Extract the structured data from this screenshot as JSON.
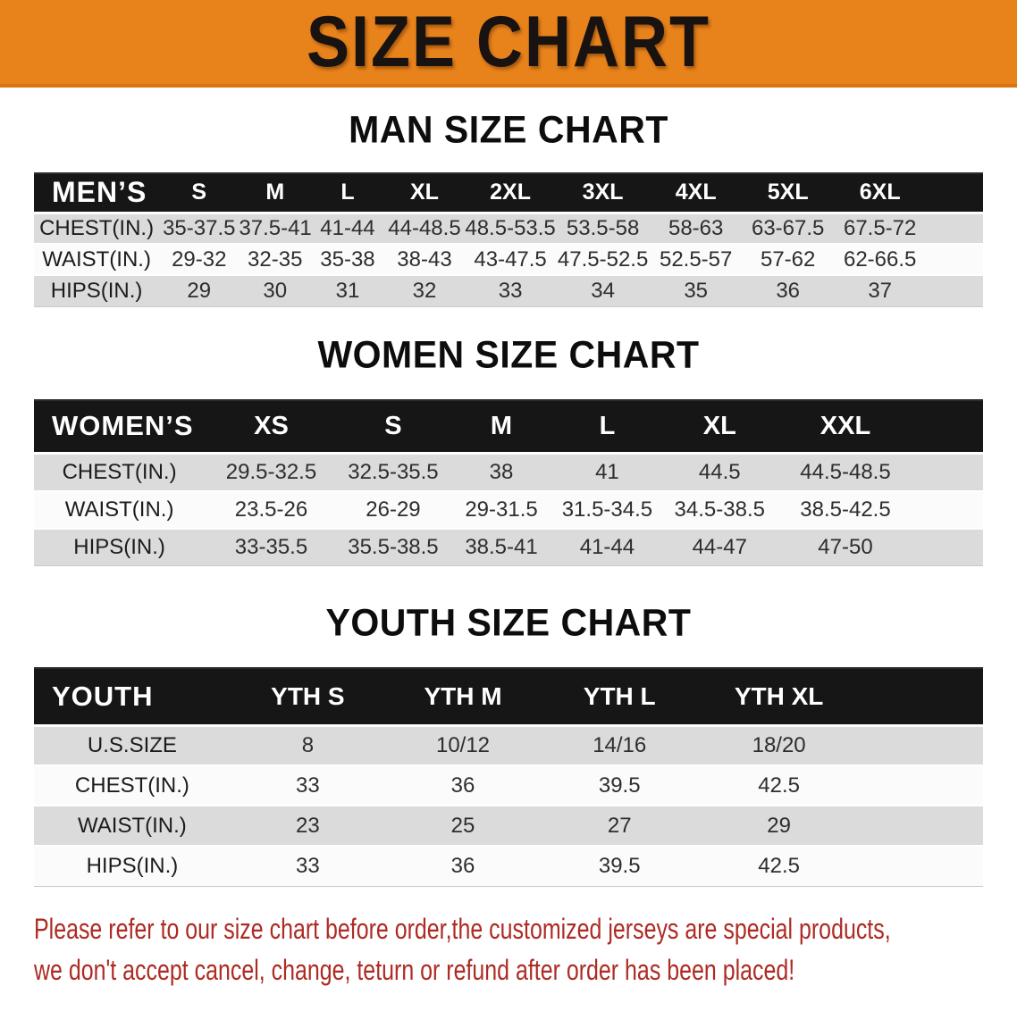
{
  "banner": {
    "title": "SIZE CHART"
  },
  "sections": [
    {
      "heading": "MAN SIZE CHART",
      "group_label": "MEN’S",
      "columns": [
        "S",
        "M",
        "L",
        "XL",
        "2XL",
        "3XL",
        "4XL",
        "5XL",
        "6XL"
      ],
      "rows": [
        {
          "label": "CHEST(IN.)",
          "values": [
            "35-37.5",
            "37.5-41",
            "41-44",
            "44-48.5",
            "48.5-53.5",
            "53.5-58",
            "58-63",
            "63-67.5",
            "67.5-72"
          ]
        },
        {
          "label": "WAIST(IN.)",
          "values": [
            "29-32",
            "32-35",
            "35-38",
            "38-43",
            "43-47.5",
            "47.5-52.5",
            "52.5-57",
            "57-62",
            "62-66.5"
          ]
        },
        {
          "label": "HIPS(IN.)",
          "values": [
            "29",
            "30",
            "31",
            "32",
            "33",
            "34",
            "35",
            "36",
            "37"
          ]
        }
      ]
    },
    {
      "heading": "WOMEN SIZE CHART",
      "group_label": "WOMEN’S",
      "columns": [
        "XS",
        "S",
        "M",
        "L",
        "XL",
        "XXL"
      ],
      "rows": [
        {
          "label": "CHEST(IN.)",
          "values": [
            "29.5-32.5",
            "32.5-35.5",
            "38",
            "41",
            "44.5",
            "44.5-48.5"
          ]
        },
        {
          "label": "WAIST(IN.)",
          "values": [
            "23.5-26",
            "26-29",
            "29-31.5",
            "31.5-34.5",
            "34.5-38.5",
            "38.5-42.5"
          ]
        },
        {
          "label": "HIPS(IN.)",
          "values": [
            "33-35.5",
            "35.5-38.5",
            "38.5-41",
            "41-44",
            "44-47",
            "47-50"
          ]
        }
      ]
    },
    {
      "heading": "YOUTH SIZE CHART",
      "group_label": "YOUTH",
      "columns": [
        "YTH S",
        "YTH M",
        "YTH L",
        "YTH XL"
      ],
      "rows": [
        {
          "label": "U.S.SIZE",
          "values": [
            "8",
            "10/12",
            "14/16",
            "18/20"
          ]
        },
        {
          "label": "CHEST(IN.)",
          "values": [
            "33",
            "36",
            "39.5",
            "42.5"
          ]
        },
        {
          "label": "WAIST(IN.)",
          "values": [
            "23",
            "25",
            "27",
            "29"
          ]
        },
        {
          "label": "HIPS(IN.)",
          "values": [
            "33",
            "36",
            "39.5",
            "42.5"
          ]
        }
      ]
    }
  ],
  "disclaimer": {
    "line1": "Please refer to our size chart before order,the customized jerseys are special products,",
    "line2": "we don't accept cancel, change, teturn or refund after order has been placed!"
  },
  "colors": {
    "banner_bg": "#E8821B",
    "banner_edge": "#D9740F",
    "header_bar_bg": "#161616",
    "stripe_gray": "#DBDBDB",
    "stripe_white": "#FBFBFB",
    "disclaimer_red": "#AE2B24"
  }
}
